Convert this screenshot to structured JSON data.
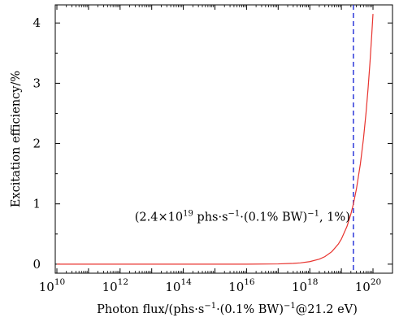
{
  "chart_data": {
    "type": "line",
    "xlabel_parts": {
      "pre": "Photon flux/(phs·s",
      "exp1": "−1",
      "mid": "·(0.1% BW)",
      "exp2": "−1",
      "post": "@21.2 eV)"
    },
    "ylabel": "Excitation efficiency/%",
    "x_scale": "log",
    "xlim": [
      10000000000.0,
      1e+20
    ],
    "ylim": [
      -0.15,
      4.3
    ],
    "x_ticks": [
      {
        "value": 10000000000.0,
        "base": "10",
        "exp": "10"
      },
      {
        "value": 1000000000000.0,
        "base": "10",
        "exp": "12"
      },
      {
        "value": 100000000000000.0,
        "base": "10",
        "exp": "14"
      },
      {
        "value": 1e+16,
        "base": "10",
        "exp": "16"
      },
      {
        "value": 1e+18,
        "base": "10",
        "exp": "18"
      },
      {
        "value": 1e+20,
        "base": "10",
        "exp": "20"
      }
    ],
    "y_ticks": [
      0,
      1,
      2,
      3,
      4
    ],
    "grid": false,
    "series": [
      {
        "color": "#e8332e",
        "x": [
          10000000000.0,
          1000000000000.0,
          100000000000000.0,
          1e+16,
          1e+17,
          3e+17,
          5e+17,
          1e+18,
          2e+18,
          3e+18,
          5e+18,
          8e+18,
          1e+19,
          1.5e+19,
          2e+19,
          2.4e+19,
          3e+19,
          4e+19,
          5e+19,
          6e+19,
          7e+19,
          8e+19,
          9e+19,
          1e+20
        ],
        "y": [
          0,
          0,
          0,
          0.0004,
          0.004,
          0.013,
          0.021,
          0.042,
          0.083,
          0.125,
          0.208,
          0.333,
          0.417,
          0.625,
          0.833,
          1.0,
          1.25,
          1.667,
          2.083,
          2.5,
          2.917,
          3.333,
          3.75,
          4.15
        ]
      }
    ],
    "reference_line": {
      "x": 2.4e+19,
      "color": "#1f2bd6",
      "style": "dashed"
    },
    "annotation": {
      "x": 2.4e+19,
      "y": 1,
      "parts": {
        "a": "(2.4×10",
        "a_exp": "19",
        "b": " phs·s",
        "b_exp": "−1",
        "c": "·(0.1% BW)",
        "c_exp": "−1",
        "d": ", 1%)"
      }
    }
  }
}
